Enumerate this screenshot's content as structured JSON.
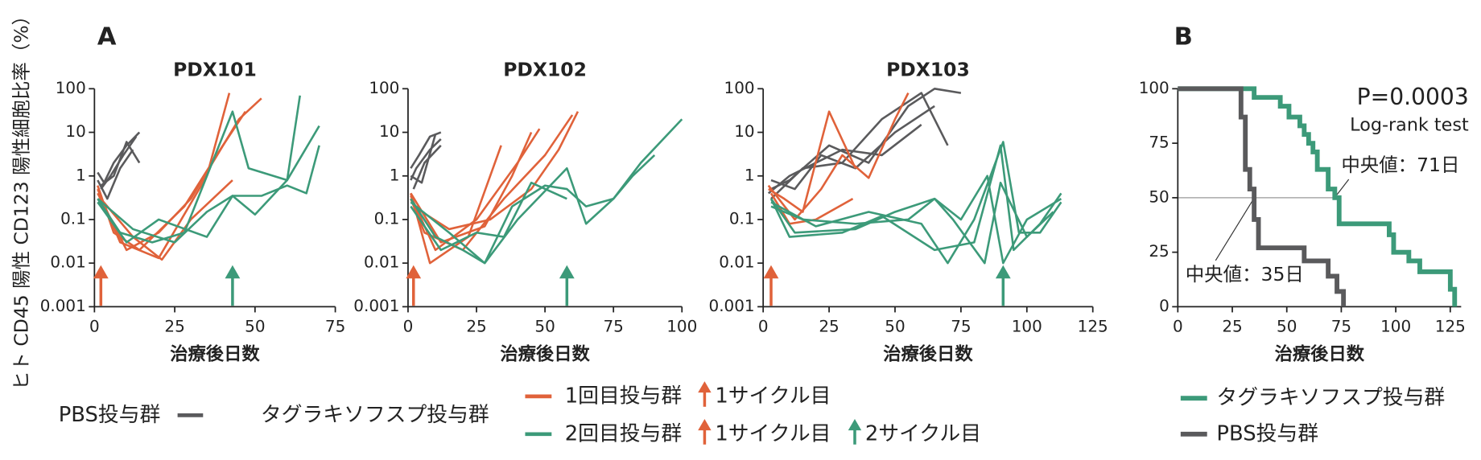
{
  "figure": {
    "panel_labels": [
      "A",
      "B"
    ],
    "y_label": "ヒト CD45 陽性 CD123 陽性細胞比率（%）",
    "legend": {
      "pbs": {
        "label": "PBS投与群",
        "color": "#5a5a5c"
      },
      "treated": "タグラキソフスプ投与群",
      "first": {
        "label": "1回目投与群",
        "color": "#e0623a",
        "arrow": "1サイクル目"
      },
      "second": {
        "label": "2回目投与群",
        "color": "#3c9a79",
        "arrow1": "1サイクル目",
        "arrow2": "2サイクル目"
      }
    }
  },
  "chart_data": [
    {
      "type": "line",
      "title": "PDX101",
      "x_label": "治療後日数",
      "log_y": true,
      "xlim": [
        0,
        75
      ],
      "xticks": [
        0,
        25,
        50,
        75
      ],
      "ylim": [
        0.001,
        100
      ],
      "yticks": [
        100,
        10,
        1,
        0.1,
        0.01,
        0.001
      ],
      "arrows": [
        {
          "x": 2,
          "color": "#e0623a"
        },
        {
          "x": 43,
          "color": "#3c9a79"
        }
      ],
      "series": [
        {
          "color": "#5a5a5c",
          "x": [
            1,
            3,
            6,
            10,
            14
          ],
          "values": [
            1.2,
            0.7,
            2,
            5,
            10
          ]
        },
        {
          "color": "#5a5a5c",
          "x": [
            2,
            5,
            9,
            13
          ],
          "values": [
            0.5,
            1,
            3,
            8
          ]
        },
        {
          "color": "#5a5a5c",
          "x": [
            1,
            4,
            8,
            12
          ],
          "values": [
            0.8,
            0.3,
            1.5,
            4
          ]
        },
        {
          "color": "#5a5a5c",
          "x": [
            2,
            6,
            10,
            14
          ],
          "values": [
            0.6,
            1,
            6,
            2
          ]
        },
        {
          "color": "#e0623a",
          "x": [
            1,
            8,
            20,
            35,
            42
          ],
          "values": [
            0.5,
            0.03,
            0.013,
            1,
            80
          ]
        },
        {
          "color": "#e0623a",
          "x": [
            1,
            6,
            14,
            28,
            40,
            47
          ],
          "values": [
            0.6,
            0.05,
            0.02,
            0.2,
            5,
            30
          ]
        },
        {
          "color": "#e0623a",
          "x": [
            1,
            10,
            20,
            30,
            45,
            52
          ],
          "values": [
            0.4,
            0.02,
            0.05,
            0.3,
            20,
            60
          ]
        },
        {
          "color": "#e0623a",
          "x": [
            2,
            12,
            21,
            30,
            43
          ],
          "values": [
            0.3,
            0.04,
            0.012,
            0.1,
            0.8
          ]
        },
        {
          "color": "#3c9a79",
          "x": [
            1,
            8,
            18,
            28,
            43,
            48,
            60,
            64
          ],
          "values": [
            0.3,
            0.05,
            0.03,
            0.05,
            30,
            1.5,
            0.8,
            70
          ]
        },
        {
          "color": "#3c9a79",
          "x": [
            1,
            10,
            20,
            35,
            43,
            50,
            60,
            70
          ],
          "values": [
            0.25,
            0.03,
            0.1,
            0.04,
            0.35,
            0.13,
            0.8,
            14
          ]
        },
        {
          "color": "#3c9a79",
          "x": [
            1,
            12,
            25,
            35,
            43,
            52,
            60,
            66,
            70
          ],
          "values": [
            0.3,
            0.06,
            0.03,
            0.15,
            0.35,
            0.35,
            0.6,
            0.4,
            5
          ]
        }
      ]
    },
    {
      "type": "line",
      "title": "PDX102",
      "x_label": "治療後日数",
      "log_y": true,
      "xlim": [
        0,
        100
      ],
      "xticks": [
        0,
        25,
        50,
        75,
        100
      ],
      "ylim": [
        0.001,
        100
      ],
      "yticks": [
        100,
        10,
        1,
        0.1,
        0.01,
        0.001
      ],
      "arrows": [
        {
          "x": 2,
          "color": "#e0623a"
        },
        {
          "x": 58,
          "color": "#3c9a79"
        }
      ],
      "series": [
        {
          "color": "#5a5a5c",
          "x": [
            1,
            4,
            8,
            12
          ],
          "values": [
            1.5,
            3,
            8,
            10
          ]
        },
        {
          "color": "#5a5a5c",
          "x": [
            1,
            5,
            10
          ],
          "values": [
            1,
            0.7,
            9
          ]
        },
        {
          "color": "#5a5a5c",
          "x": [
            1,
            3,
            8,
            12
          ],
          "values": [
            0.8,
            1.5,
            4,
            7
          ]
        },
        {
          "color": "#5a5a5c",
          "x": [
            2,
            6,
            12
          ],
          "values": [
            0.5,
            2,
            5
          ]
        },
        {
          "color": "#e0623a",
          "x": [
            1,
            8,
            22,
            34
          ],
          "values": [
            0.4,
            0.01,
            0.04,
            5
          ]
        },
        {
          "color": "#e0623a",
          "x": [
            1,
            10,
            25,
            40,
            48
          ],
          "values": [
            0.35,
            0.02,
            0.1,
            2,
            12
          ]
        },
        {
          "color": "#e0623a",
          "x": [
            1,
            6,
            20,
            35,
            50,
            60
          ],
          "values": [
            0.3,
            0.05,
            0.02,
            0.3,
            3,
            25
          ]
        },
        {
          "color": "#e0623a",
          "x": [
            1,
            12,
            28,
            38,
            45
          ],
          "values": [
            0.4,
            0.03,
            0.07,
            1,
            10
          ]
        },
        {
          "color": "#e0623a",
          "x": [
            2,
            15,
            30,
            45,
            55,
            62
          ],
          "values": [
            0.2,
            0.06,
            0.1,
            0.5,
            4,
            30
          ]
        },
        {
          "color": "#3c9a79",
          "x": [
            1,
            10,
            20,
            28,
            40,
            58,
            65,
            75,
            85,
            100
          ],
          "values": [
            0.3,
            0.04,
            0.02,
            0.01,
            0.1,
            1.5,
            0.08,
            0.3,
            2,
            20
          ]
        },
        {
          "color": "#3c9a79",
          "x": [
            1,
            15,
            28,
            38,
            50,
            58,
            65,
            75,
            82,
            90
          ],
          "values": [
            0.25,
            0.05,
            0.01,
            0.2,
            0.6,
            0.5,
            0.2,
            0.3,
            1,
            3
          ]
        },
        {
          "color": "#3c9a79",
          "x": [
            1,
            12,
            25,
            35,
            45,
            58
          ],
          "values": [
            0.2,
            0.02,
            0.05,
            0.04,
            0.7,
            0.3
          ]
        }
      ]
    },
    {
      "type": "line",
      "title": "PDX103",
      "x_label": "治療後日数",
      "log_y": true,
      "xlim": [
        0,
        125
      ],
      "xticks": [
        0,
        25,
        50,
        75,
        100,
        125
      ],
      "ylim": [
        0.001,
        100
      ],
      "yticks": [
        100,
        10,
        1,
        0.1,
        0.01,
        0.001
      ],
      "arrows": [
        {
          "x": 3,
          "color": "#e0623a"
        },
        {
          "x": 91,
          "color": "#3c9a79"
        }
      ],
      "series": [
        {
          "color": "#5a5a5c",
          "x": [
            3,
            10,
            25,
            40,
            55,
            65,
            75
          ],
          "values": [
            0.5,
            0.8,
            5,
            2,
            40,
            100,
            80
          ]
        },
        {
          "color": "#5a5a5c",
          "x": [
            3,
            15,
            30,
            45,
            60,
            70
          ],
          "values": [
            0.3,
            1.5,
            2,
            20,
            80,
            5
          ]
        },
        {
          "color": "#5a5a5c",
          "x": [
            3,
            12,
            22,
            35,
            50,
            65
          ],
          "values": [
            0.8,
            0.5,
            3,
            1.5,
            10,
            40
          ]
        },
        {
          "color": "#5a5a5c",
          "x": [
            2,
            10,
            20,
            30,
            45,
            60
          ],
          "values": [
            0.4,
            1,
            2,
            4,
            3,
            15
          ]
        },
        {
          "color": "#e0623a",
          "x": [
            2,
            8,
            15,
            25,
            35
          ],
          "values": [
            0.5,
            0.3,
            0.15,
            30,
            1.5
          ]
        },
        {
          "color": "#e0623a",
          "x": [
            2,
            12,
            22,
            30,
            40,
            50,
            55
          ],
          "values": [
            0.6,
            0.1,
            0.5,
            3,
            0.9,
            20,
            80
          ]
        },
        {
          "color": "#e0623a",
          "x": [
            3,
            10,
            20,
            34
          ],
          "values": [
            0.4,
            0.08,
            0.1,
            0.3
          ]
        },
        {
          "color": "#3c9a79",
          "x": [
            3,
            10,
            30,
            45,
            65,
            80,
            90,
            95,
            105,
            113
          ],
          "values": [
            0.3,
            0.04,
            0.05,
            0.12,
            0.02,
            0.03,
            5,
            0.02,
            0.08,
            0.4
          ]
        },
        {
          "color": "#3c9a79",
          "x": [
            3,
            15,
            35,
            55,
            65,
            75,
            85,
            91,
            100,
            113
          ],
          "values": [
            0.2,
            0.1,
            0.08,
            0.1,
            0.3,
            0.1,
            1,
            0.01,
            0.1,
            0.3
          ]
        },
        {
          "color": "#3c9a79",
          "x": [
            3,
            20,
            40,
            60,
            70,
            80,
            91,
            97,
            105,
            113
          ],
          "values": [
            0.25,
            0.07,
            0.15,
            0.08,
            0.01,
            0.1,
            6,
            0.05,
            0.05,
            0.25
          ]
        },
        {
          "color": "#3c9a79",
          "x": [
            3,
            12,
            35,
            50,
            65,
            72,
            84,
            90,
            100,
            110
          ],
          "values": [
            0.3,
            0.05,
            0.06,
            0.15,
            0.3,
            0.1,
            0.01,
            0.7,
            0.04,
            0.15
          ]
        }
      ]
    },
    {
      "type": "step",
      "x_label": "治療後日数",
      "xlim": [
        0,
        130
      ],
      "xticks": [
        0,
        25,
        50,
        75,
        100,
        125
      ],
      "ylim": [
        0,
        100
      ],
      "yticks": [
        0,
        25,
        50,
        75,
        100
      ],
      "annotations": [
        "P=0.0003",
        "Log-rank test",
        "中央値：71日",
        "中央値：35日"
      ],
      "series": [
        {
          "name": "タグラキソフスプ投与群",
          "color": "#3c9a79",
          "x": [
            0,
            35,
            47,
            51,
            56,
            58,
            60,
            62,
            64,
            69,
            72,
            74,
            97,
            99,
            106,
            111,
            125,
            127
          ],
          "values": [
            100,
            96,
            92,
            87,
            83,
            79,
            75,
            71,
            63,
            54,
            50,
            38,
            33,
            25,
            21,
            16,
            8,
            0
          ]
        },
        {
          "name": "PBS投与群",
          "color": "#5a5a5c",
          "x": [
            0,
            29,
            31,
            33,
            35,
            37,
            58,
            69,
            73,
            76
          ],
          "values": [
            100,
            87,
            63,
            54,
            40,
            27,
            21,
            14,
            7,
            0
          ]
        }
      ]
    }
  ]
}
